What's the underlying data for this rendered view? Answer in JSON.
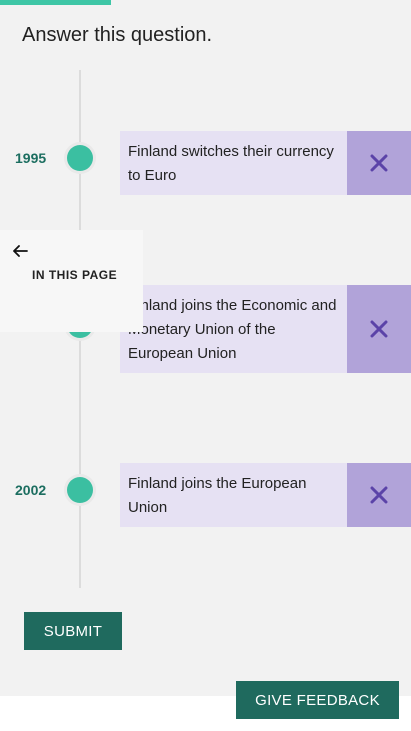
{
  "question": "Answer this question.",
  "timeline": [
    {
      "year": "1995",
      "event": "Finland switches their currency to Euro"
    },
    {
      "year": "",
      "event": "Finland joins the Economic and Monetary Union of the European Union"
    },
    {
      "year": "2002",
      "event": "Finland joins the European Union"
    }
  ],
  "in_page": {
    "label": "IN THIS PAGE",
    "icon": "arrow-left-icon"
  },
  "buttons": {
    "submit": "SUBMIT",
    "feedback": "GIVE FEEDBACK"
  },
  "colors": {
    "progress": "#3ec6a6",
    "dot": "#3bbfa1",
    "year": "#1c6e60",
    "card": "#e6e1f3",
    "remove": "#b1a3d9",
    "remove_icon": "#5b43a8",
    "button": "#1f6a5e"
  },
  "progress_fraction": 0.27
}
